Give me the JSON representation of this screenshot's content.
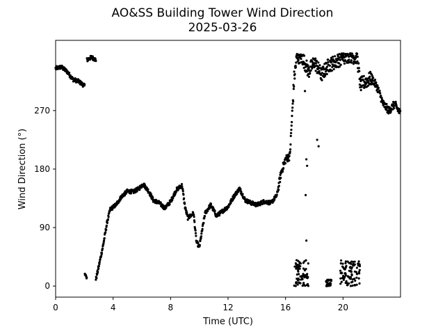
{
  "chart_data": {
    "type": "scatter",
    "title": "AO&SS Building Tower Wind Direction",
    "subtitle": "2025-03-26",
    "xlabel": "Time (UTC)",
    "ylabel": "Wind Direction (°)",
    "xlim": [
      0,
      24
    ],
    "ylim": [
      -17,
      378
    ],
    "xticks": [
      0,
      4,
      8,
      12,
      16,
      20
    ],
    "yticks": [
      0,
      90,
      180,
      270
    ],
    "grid": false,
    "marker_color": "#000000",
    "anchor_points": [
      [
        0.0,
        335
      ],
      [
        0.4,
        337
      ],
      [
        0.8,
        330
      ],
      [
        1.2,
        318
      ],
      [
        1.6,
        315
      ],
      [
        2.0,
        308
      ],
      [
        2.05,
        20
      ],
      [
        2.15,
        12
      ],
      [
        2.2,
        348
      ],
      [
        2.5,
        352
      ],
      [
        2.8,
        348
      ],
      [
        2.8,
        10
      ],
      [
        3.0,
        30
      ],
      [
        3.3,
        62
      ],
      [
        3.6,
        100
      ],
      [
        3.8,
        118
      ],
      [
        4.2,
        125
      ],
      [
        4.6,
        138
      ],
      [
        5.0,
        146
      ],
      [
        5.4,
        145
      ],
      [
        5.8,
        150
      ],
      [
        6.1,
        157
      ],
      [
        6.5,
        145
      ],
      [
        6.8,
        132
      ],
      [
        7.2,
        128
      ],
      [
        7.6,
        120
      ],
      [
        8.0,
        130
      ],
      [
        8.4,
        148
      ],
      [
        8.8,
        155
      ],
      [
        9.0,
        122
      ],
      [
        9.2,
        105
      ],
      [
        9.6,
        112
      ],
      [
        9.8,
        68
      ],
      [
        10.0,
        60
      ],
      [
        10.4,
        112
      ],
      [
        10.8,
        125
      ],
      [
        11.2,
        108
      ],
      [
        11.6,
        115
      ],
      [
        12.0,
        122
      ],
      [
        12.4,
        138
      ],
      [
        12.8,
        150
      ],
      [
        13.2,
        132
      ],
      [
        13.6,
        128
      ],
      [
        14.0,
        125
      ],
      [
        14.5,
        130
      ],
      [
        15.0,
        128
      ],
      [
        15.4,
        140
      ],
      [
        15.7,
        175
      ],
      [
        16.0,
        195
      ],
      [
        16.3,
        200
      ],
      [
        16.6,
        320
      ],
      [
        16.8,
        355
      ],
      [
        17.2,
        350
      ],
      [
        17.6,
        330
      ],
      [
        18.0,
        345
      ],
      [
        18.5,
        325
      ],
      [
        19.0,
        340
      ],
      [
        19.5,
        345
      ],
      [
        20.0,
        352
      ],
      [
        20.5,
        355
      ],
      [
        21.0,
        350
      ],
      [
        21.2,
        310
      ],
      [
        21.6,
        315
      ],
      [
        22.0,
        320
      ],
      [
        22.4,
        305
      ],
      [
        22.8,
        280
      ],
      [
        23.2,
        270
      ],
      [
        23.6,
        280
      ],
      [
        24.0,
        265
      ]
    ],
    "low_clusters": [
      {
        "x_start": 16.6,
        "x_end": 17.6,
        "y_low": 0,
        "y_high": 40
      },
      {
        "x_start": 18.8,
        "x_end": 19.2,
        "y_low": 0,
        "y_high": 10
      },
      {
        "x_start": 19.8,
        "x_end": 21.2,
        "y_low": 0,
        "y_high": 40
      }
    ],
    "transition_points": [
      [
        17.45,
        195
      ],
      [
        17.5,
        185
      ],
      [
        17.4,
        140
      ],
      [
        17.45,
        70
      ],
      [
        17.35,
        300
      ],
      [
        18.2,
        225
      ],
      [
        18.3,
        215
      ]
    ]
  }
}
